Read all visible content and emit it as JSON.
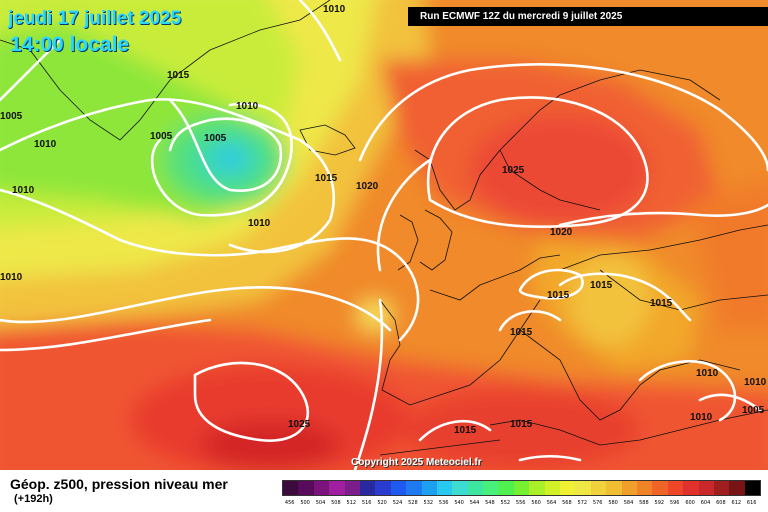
{
  "header": {
    "date": "jeudi 17 juillet 2025",
    "time": "14:00 locale",
    "run": "Run ECMWF 12Z du mercredi 9 juillet 2025"
  },
  "footer": {
    "copyright": "Copyright 2025 Meteociel.fr",
    "legend_title": "Géop. z500, pression niveau mer",
    "legend_sub": "(+192h)"
  },
  "isobar_labels": [
    "1010",
    "1015",
    "1010",
    "1005",
    "1005",
    "1010",
    "1005",
    "1015",
    "1020",
    "1010",
    "1010",
    "1025",
    "1020",
    "1015",
    "1015",
    "1015",
    "1015",
    "1025",
    "1015",
    "1015",
    "1010",
    "1010",
    "1010",
    "1005",
    "1010"
  ],
  "scale": {
    "ticks": [
      "456",
      "500",
      "504",
      "508",
      "512",
      "516",
      "520",
      "524",
      "528",
      "532",
      "536",
      "540",
      "544",
      "548",
      "552",
      "556",
      "560",
      "564",
      "568",
      "572",
      "576",
      "580",
      "584",
      "588",
      "592",
      "596",
      "600",
      "604",
      "608",
      "612",
      "616"
    ],
    "colors": [
      "#3c0a3c",
      "#5a0a5a",
      "#7a147a",
      "#a01ea0",
      "#7b1e8c",
      "#2a2aa0",
      "#2a3cd0",
      "#1e5af0",
      "#1e7af0",
      "#1ea0f0",
      "#28c8f0",
      "#3cdcd0",
      "#3ce6a0",
      "#46f07a",
      "#50f050",
      "#78f032",
      "#aaf028",
      "#d2f028",
      "#f0f032",
      "#f0e646",
      "#f0d23c",
      "#f0be32",
      "#f0a028",
      "#f08228",
      "#f06428",
      "#f04628",
      "#e0322a",
      "#c8282a",
      "#a01e1e",
      "#781414",
      "#000000"
    ]
  }
}
